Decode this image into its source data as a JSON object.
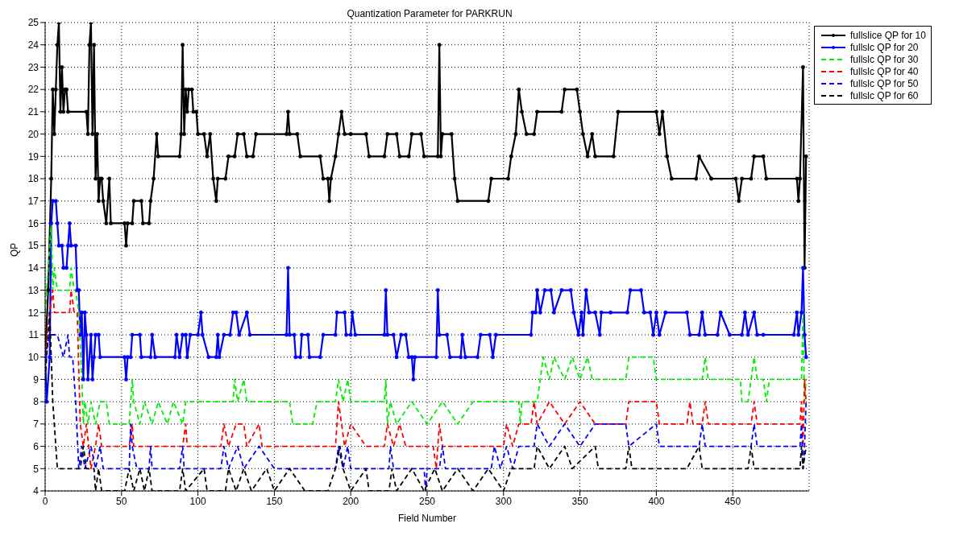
{
  "chart_data": {
    "type": "line",
    "title": "Quantization Parameter for PARKRUN",
    "xlabel": "Field Number",
    "ylabel": "QP",
    "xlim": [
      0,
      500
    ],
    "xticks": [
      0,
      50,
      100,
      150,
      200,
      250,
      300,
      350,
      400,
      450
    ],
    "ylim": [
      4,
      25
    ],
    "yticks": [
      4,
      5,
      6,
      7,
      8,
      9,
      10,
      11,
      12,
      13,
      14,
      15,
      16,
      17,
      18,
      19,
      20,
      21,
      22,
      23,
      24,
      25
    ],
    "grid": true,
    "legend": "top right",
    "series": [
      {
        "name": "fullslice QP for 10",
        "color": "#000000",
        "marker": "circle",
        "line_style": "solid",
        "x": [
          0,
          2,
          4,
          5,
          6,
          7,
          8,
          9,
          10,
          11,
          12,
          13,
          14,
          15,
          27,
          28,
          29,
          30,
          31,
          32,
          33,
          34,
          35,
          36,
          37,
          38,
          40,
          42,
          43,
          52,
          53,
          54,
          57,
          58,
          63,
          64,
          68,
          69,
          71,
          73,
          74,
          88,
          89,
          90,
          91,
          92,
          93,
          94,
          96,
          97,
          99,
          100,
          104,
          106,
          108,
          110,
          112,
          113,
          118,
          120,
          124,
          126,
          130,
          132,
          136,
          138,
          158,
          159,
          160,
          165,
          167,
          180,
          182,
          185,
          186,
          187,
          190,
          192,
          194,
          196,
          200,
          210,
          212,
          222,
          224,
          230,
          232,
          238,
          240,
          246,
          248,
          257,
          258,
          259,
          260,
          266,
          268,
          270,
          290,
          292,
          303,
          305,
          308,
          310,
          312,
          315,
          320,
          322,
          338,
          340,
          348,
          350,
          352,
          355,
          358,
          360,
          372,
          375,
          400,
          402,
          404,
          407,
          410,
          426,
          428,
          436,
          452,
          454,
          456,
          462,
          464,
          470,
          472,
          492,
          493,
          494,
          496,
          497,
          498
        ],
        "values": [
          10,
          13,
          18,
          22,
          20,
          22,
          24,
          25,
          21,
          23,
          21,
          22,
          22,
          21,
          21,
          20,
          24,
          25,
          20,
          24,
          18,
          20,
          17,
          18,
          18,
          17,
          16,
          18,
          16,
          16,
          15,
          16,
          16,
          17,
          17,
          16,
          16,
          17,
          18,
          20,
          19,
          19,
          20,
          24,
          20,
          22,
          21,
          22,
          22,
          21,
          21,
          20,
          20,
          19,
          20,
          18,
          17,
          18,
          18,
          19,
          19,
          20,
          20,
          19,
          19,
          20,
          20,
          21,
          20,
          20,
          19,
          19,
          18,
          18,
          17,
          18,
          19,
          20,
          21,
          20,
          20,
          20,
          19,
          19,
          20,
          20,
          19,
          19,
          20,
          20,
          19,
          19,
          24,
          19,
          20,
          20,
          18,
          17,
          17,
          18,
          18,
          19,
          20,
          22,
          21,
          20,
          20,
          21,
          21,
          22,
          22,
          21,
          20,
          19,
          20,
          19,
          19,
          21,
          21,
          20,
          21,
          19,
          18,
          18,
          19,
          18,
          18,
          17,
          18,
          18,
          19,
          19,
          18,
          18,
          17,
          18,
          23,
          14,
          19
        ]
      },
      {
        "name": "fullslc QP for 20",
        "color": "#0000ff",
        "marker": "circle",
        "line_style": "solid",
        "x": [
          0,
          1,
          3,
          4,
          5,
          7,
          8,
          9,
          11,
          12,
          14,
          15,
          16,
          17,
          20,
          21,
          22,
          23,
          24,
          25,
          26,
          27,
          28,
          30,
          31,
          32,
          33,
          35,
          36,
          52,
          53,
          54,
          56,
          57,
          62,
          63,
          69,
          70,
          72,
          85,
          86,
          88,
          90,
          92,
          93,
          95,
          100,
          102,
          103,
          107,
          112,
          113,
          114,
          117,
          121,
          123,
          125,
          127,
          132,
          134,
          158,
          159,
          160,
          163,
          164,
          167,
          168,
          172,
          173,
          180,
          182,
          190,
          191,
          196,
          197,
          200,
          201,
          203,
          222,
          223,
          224,
          228,
          230,
          233,
          236,
          238,
          240,
          241,
          242,
          256,
          257,
          258,
          263,
          265,
          272,
          273,
          275,
          283,
          285,
          291,
          293,
          295,
          318,
          319,
          321,
          322,
          324,
          327,
          331,
          333,
          338,
          344,
          346,
          349,
          351,
          352,
          354,
          356,
          360,
          363,
          364,
          370,
          381,
          383,
          390,
          392,
          396,
          398,
          400,
          402,
          406,
          420,
          422,
          428,
          430,
          432,
          440,
          442,
          448,
          456,
          458,
          460,
          464,
          466,
          470,
          490,
          492,
          493,
          495,
          496,
          497,
          498
        ],
        "values": [
          10,
          8,
          10,
          16,
          17,
          17,
          16,
          15,
          15,
          14,
          14,
          15,
          16,
          15,
          15,
          13,
          13,
          11,
          12,
          9,
          12,
          11,
          9,
          11,
          9,
          10,
          11,
          11,
          10,
          10,
          9,
          10,
          10,
          11,
          11,
          10,
          10,
          11,
          10,
          10,
          11,
          10,
          11,
          11,
          10,
          11,
          11,
          12,
          11,
          10,
          10,
          11,
          10,
          11,
          11,
          12,
          12,
          11,
          12,
          11,
          11,
          14,
          11,
          11,
          10,
          10,
          11,
          11,
          10,
          10,
          11,
          11,
          12,
          12,
          11,
          11,
          12,
          11,
          11,
          13,
          11,
          11,
          10,
          11,
          11,
          10,
          10,
          9,
          10,
          10,
          13,
          11,
          11,
          10,
          10,
          11,
          10,
          10,
          11,
          11,
          10,
          11,
          11,
          12,
          12,
          13,
          12,
          13,
          13,
          12,
          13,
          13,
          12,
          11,
          12,
          11,
          13,
          12,
          12,
          11,
          12,
          12,
          12,
          13,
          13,
          12,
          12,
          11,
          12,
          11,
          12,
          12,
          11,
          11,
          12,
          11,
          11,
          12,
          11,
          11,
          12,
          11,
          12,
          11,
          11,
          11,
          12,
          11,
          12,
          14,
          11,
          10
        ]
      },
      {
        "name": "fullslc QP for 30",
        "color": "#00ee00",
        "marker": "none",
        "line_style": "dashed",
        "x": [
          0,
          3,
          4,
          5,
          6,
          8,
          16,
          17,
          19,
          20,
          22,
          24,
          25,
          26,
          28,
          30,
          33,
          36,
          40,
          42,
          55,
          57,
          58,
          62,
          65,
          70,
          74,
          80,
          84,
          90,
          92,
          123,
          124,
          126,
          130,
          132,
          160,
          162,
          175,
          178,
          190,
          192,
          195,
          198,
          200,
          222,
          223,
          224,
          226,
          230,
          240,
          250,
          260,
          270,
          280,
          310,
          311,
          312,
          322,
          324,
          326,
          330,
          333,
          340,
          345,
          350,
          355,
          358,
          380,
          382,
          398,
          400,
          430,
          432,
          434,
          455,
          456,
          460,
          462,
          464,
          466,
          470,
          472,
          474,
          495,
          496,
          497,
          498
        ],
        "values": [
          12,
          15,
          16,
          13,
          14,
          13,
          13,
          14,
          13,
          13,
          12,
          9,
          7,
          8,
          7,
          8,
          7,
          8,
          8,
          7,
          7,
          9,
          8,
          7,
          8,
          7,
          8,
          7,
          8,
          7,
          8,
          8,
          9,
          8,
          9,
          8,
          8,
          7,
          7,
          8,
          8,
          9,
          8,
          9,
          8,
          8,
          9,
          7,
          8,
          7,
          8,
          7,
          8,
          7,
          8,
          8,
          7,
          8,
          8,
          9,
          10,
          9,
          10,
          9,
          10,
          9,
          10,
          9,
          9,
          10,
          10,
          9,
          9,
          10,
          9,
          9,
          8,
          8,
          9,
          10,
          9,
          9,
          8,
          9,
          9,
          12,
          8,
          9
        ]
      },
      {
        "name": "fullslc QP for 40",
        "color": "#ff0000",
        "marker": "none",
        "line_style": "dashed",
        "x": [
          0,
          3,
          5,
          6,
          16,
          17,
          19,
          21,
          23,
          25,
          27,
          30,
          33,
          35,
          37,
          55,
          57,
          58,
          90,
          92,
          93,
          115,
          117,
          120,
          125,
          130,
          132,
          140,
          142,
          190,
          192,
          194,
          196,
          200,
          210,
          222,
          224,
          228,
          232,
          236,
          254,
          256,
          258,
          260,
          300,
          302,
          306,
          310,
          318,
          320,
          322,
          330,
          340,
          350,
          360,
          380,
          382,
          400,
          402,
          420,
          422,
          424,
          430,
          432,
          434,
          462,
          464,
          466,
          494,
          495,
          496,
          497,
          498
        ],
        "values": [
          10,
          12,
          13,
          12,
          12,
          13,
          12,
          12,
          7,
          6,
          7,
          5,
          6,
          7,
          6,
          6,
          7,
          6,
          6,
          7,
          6,
          6,
          7,
          6,
          7,
          7,
          6,
          7,
          6,
          6,
          8,
          7,
          6,
          7,
          6,
          6,
          7,
          6,
          7,
          6,
          6,
          5,
          7,
          6,
          6,
          7,
          6,
          7,
          7,
          8,
          7,
          8,
          7,
          8,
          7,
          7,
          8,
          8,
          7,
          7,
          8,
          7,
          7,
          8,
          7,
          7,
          8,
          7,
          7,
          8,
          6,
          9,
          8
        ]
      },
      {
        "name": "fullslc QP for 50",
        "color": "#0000ff",
        "marker": "none",
        "line_style": "dashed",
        "x": [
          0,
          3,
          8,
          12,
          15,
          16,
          18,
          20,
          22,
          24,
          26,
          30,
          33,
          36,
          38,
          55,
          56,
          57,
          60,
          68,
          69,
          70,
          88,
          90,
          91,
          115,
          117,
          120,
          126,
          130,
          140,
          150,
          190,
          192,
          195,
          198,
          200,
          225,
          226,
          228,
          248,
          249,
          250,
          258,
          260,
          262,
          292,
          294,
          298,
          302,
          306,
          310,
          320,
          322,
          330,
          340,
          350,
          360,
          380,
          382,
          400,
          402,
          428,
          430,
          432,
          462,
          464,
          466,
          494,
          495,
          496,
          497,
          498
        ],
        "values": [
          10,
          11,
          11,
          10,
          11,
          10,
          10,
          8,
          5,
          6,
          5,
          6,
          5,
          6,
          5,
          5,
          7,
          6,
          5,
          5,
          6,
          5,
          5,
          6,
          5,
          5,
          6,
          5,
          6,
          5,
          6,
          5,
          5,
          6,
          5,
          6,
          5,
          5,
          6,
          5,
          5,
          4,
          5,
          5,
          6,
          5,
          5,
          6,
          5,
          6,
          5,
          6,
          6,
          7,
          6,
          7,
          6,
          7,
          7,
          6,
          7,
          6,
          6,
          7,
          6,
          6,
          7,
          6,
          6,
          7,
          5,
          6,
          8
        ]
      },
      {
        "name": "fullslc QP for 60",
        "color": "#000000",
        "marker": "none",
        "line_style": "dashed",
        "x": [
          0,
          3,
          5,
          8,
          23,
          25,
          27,
          32,
          33,
          35,
          37,
          40,
          45,
          52,
          55,
          58,
          62,
          65,
          68,
          70,
          88,
          90,
          92,
          104,
          106,
          118,
          120,
          125,
          130,
          135,
          145,
          150,
          160,
          170,
          185,
          190,
          193,
          195,
          200,
          210,
          212,
          225,
          227,
          230,
          240,
          248,
          255,
          260,
          270,
          280,
          290,
          300,
          305,
          312,
          320,
          322,
          330,
          340,
          345,
          360,
          362,
          380,
          382,
          384,
          420,
          428,
          430,
          460,
          462,
          464,
          494,
          495,
          496,
          498
        ],
        "values": [
          9,
          12,
          8,
          5,
          5,
          6,
          5,
          5,
          4,
          5,
          4,
          4,
          4,
          4,
          5,
          4,
          5,
          4,
          5,
          4,
          4,
          5,
          4,
          5,
          4,
          4,
          5,
          4,
          5,
          4,
          5,
          4,
          5,
          4,
          4,
          5,
          6,
          5,
          4,
          5,
          4,
          4,
          5,
          4,
          5,
          4,
          5,
          4,
          5,
          4,
          5,
          4,
          5,
          5,
          5,
          6,
          5,
          6,
          5,
          6,
          5,
          5,
          6,
          5,
          5,
          6,
          5,
          5,
          6,
          5,
          5,
          6,
          5,
          6
        ]
      }
    ]
  }
}
